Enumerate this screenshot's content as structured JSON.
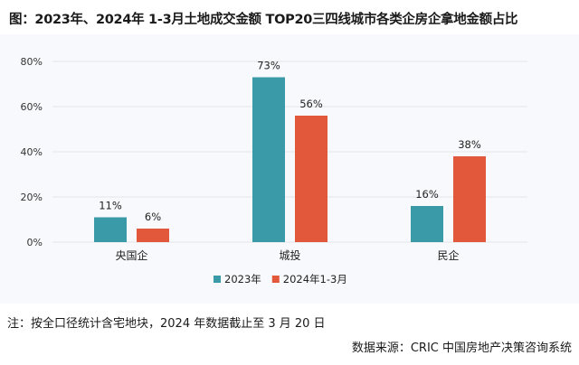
{
  "title": "图：2023年、2024年 1-3月土地成交金额 TOP20三四线城市各类企房企拿地金额占比",
  "note": "注：按全口径统计含宅地块，2024 年数据截止至 3 月 20 日",
  "source": "数据来源：CRIC 中国房地产决策咨询系统",
  "colors": {
    "series_2023": "#3a9aa8",
    "series_2024": "#e2583a",
    "grid": "#e3e5ea",
    "panel": "#f8f9fc"
  },
  "chart_data": {
    "type": "bar",
    "title": "图：2023年、2024年 1-3月土地成交金额 TOP20三四线城市各类企房企拿地金额占比",
    "xlabel": "",
    "ylabel": "",
    "ylim": [
      0,
      80
    ],
    "yticks": [
      0,
      20,
      40,
      60,
      80
    ],
    "ytick_labels": [
      "0%",
      "20%",
      "40%",
      "60%",
      "80%"
    ],
    "grid": true,
    "legend": "bottom",
    "categories": [
      "央国企",
      "城投",
      "民企"
    ],
    "series": [
      {
        "name": "2023年",
        "values": [
          11,
          73,
          16
        ],
        "labels": [
          "11%",
          "73%",
          "16%"
        ],
        "color": "#3a9aa8"
      },
      {
        "name": "2024年1-3月",
        "values": [
          6,
          56,
          38
        ],
        "labels": [
          "6%",
          "56%",
          "38%"
        ],
        "color": "#e2583a"
      }
    ]
  }
}
